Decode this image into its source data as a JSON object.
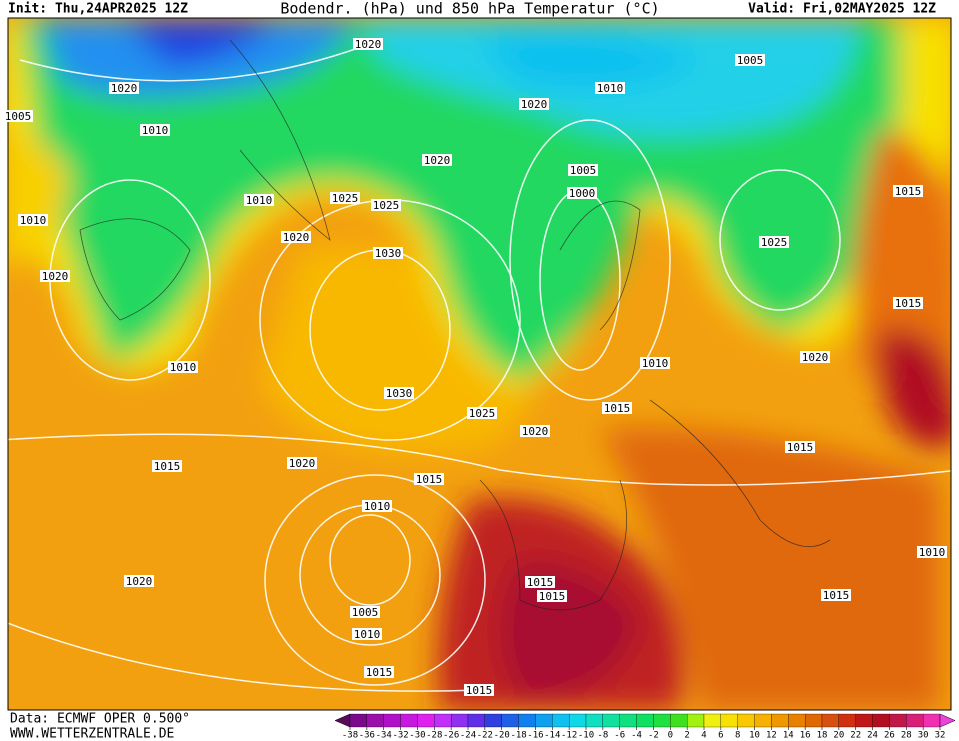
{
  "header": {
    "init": "Init: Thu,24APR2025 12Z",
    "title": "Bodendr. (hPa) und 850 hPa Temperatur (°C)",
    "valid": "Valid: Fri,02MAY2025 12Z"
  },
  "footer": {
    "source": "Data: ECMWF OPER 0.500°",
    "website": "WWW.WETTERZENTRALE.DE"
  },
  "isobar_labels": [
    1020,
    1020,
    1010,
    1005,
    1005,
    1010,
    1020,
    1020,
    1005,
    1000,
    1025,
    1025,
    1010,
    1020,
    1010,
    1030,
    1020,
    1025,
    1015,
    1015,
    1010,
    1010,
    1020,
    1030,
    1015,
    1025,
    1020,
    1015,
    1015,
    1020,
    1015,
    1010,
    1010,
    1020,
    1015,
    1015,
    1015,
    1005,
    1010,
    1015,
    1015
  ],
  "colorbar": {
    "ticks": [
      -38,
      -36,
      -34,
      -32,
      -30,
      -28,
      -26,
      -24,
      -22,
      -20,
      -18,
      -16,
      -14,
      -12,
      -10,
      -8,
      -6,
      -4,
      -2,
      0,
      2,
      4,
      6,
      8,
      10,
      12,
      14,
      16,
      18,
      20,
      22,
      24,
      26,
      28,
      30,
      32
    ],
    "colors": [
      "#5a0a5a",
      "#7a0a8a",
      "#9a10aa",
      "#b010c8",
      "#c818e0",
      "#e020f0",
      "#c030f8",
      "#9030f0",
      "#6030e8",
      "#3040e0",
      "#2060e8",
      "#1080f0",
      "#10a0f0",
      "#10c0f0",
      "#10d8e8",
      "#10e0c0",
      "#10e0a0",
      "#10e080",
      "#10e060",
      "#20e040",
      "#40e020",
      "#a0f010",
      "#f0f010",
      "#f8e000",
      "#f8c800",
      "#f8b000",
      "#f09800",
      "#e88000",
      "#e06800",
      "#d85010",
      "#d03010",
      "#c01818",
      "#b01020",
      "#c01848",
      "#d82078",
      "#f030b0",
      "#f040e0"
    ]
  }
}
